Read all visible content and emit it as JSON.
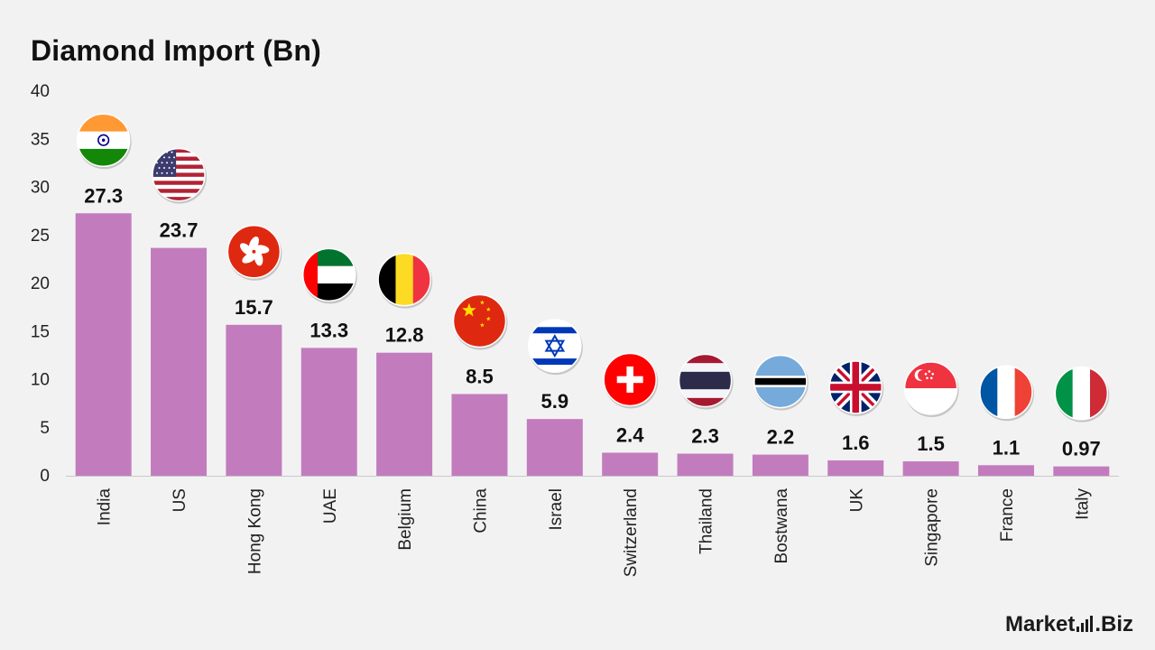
{
  "chart_data": {
    "type": "bar",
    "title": "Diamond Import (Bn)",
    "categories": [
      "India",
      "US",
      "Hong Kong",
      "UAE",
      "Belgium",
      "China",
      "Israel",
      "Switzerland",
      "Thailand",
      "Bostwana",
      "UK",
      "Singapore",
      "France",
      "Italy"
    ],
    "values": [
      27.3,
      23.7,
      15.7,
      13.3,
      12.8,
      8.5,
      5.9,
      2.4,
      2.3,
      2.2,
      1.6,
      1.5,
      1.1,
      0.97
    ],
    "value_labels": [
      "27.3",
      "23.7",
      "15.7",
      "13.3",
      "12.8",
      "8.5",
      "5.9",
      "2.4",
      "2.3",
      "2.2",
      "1.6",
      "1.5",
      "1.1",
      "0.97"
    ],
    "flags": [
      "india-flag",
      "us-flag",
      "hong-kong-flag",
      "uae-flag",
      "belgium-flag",
      "china-flag",
      "israel-flag",
      "switzerland-flag",
      "thailand-flag",
      "botswana-flag",
      "uk-flag",
      "singapore-flag",
      "france-flag",
      "italy-flag"
    ],
    "ylim": [
      0,
      40
    ],
    "yticks": [
      "0",
      "5",
      "10",
      "15",
      "20",
      "25",
      "30",
      "35",
      "40"
    ],
    "xlabel": "",
    "ylabel": "",
    "grid": false,
    "legend": "none",
    "bar_color": "#c27cbe"
  },
  "brand": {
    "name_part1": "Market",
    "name_part2": ".Biz"
  }
}
